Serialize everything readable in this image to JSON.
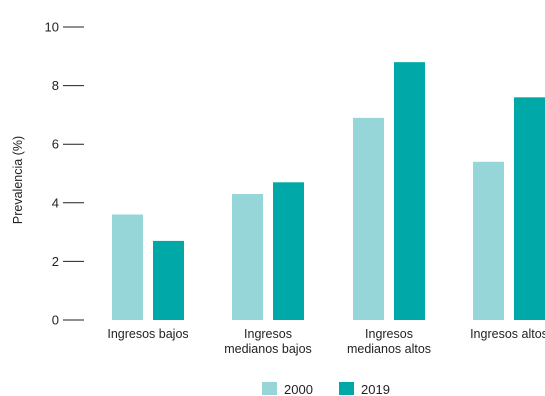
{
  "chart_data": {
    "type": "bar",
    "categories": [
      [
        "Ingresos bajos"
      ],
      [
        "Ingresos",
        "medianos bajos"
      ],
      [
        "Ingresos",
        "medianos altos"
      ],
      [
        "Ingresos altos"
      ]
    ],
    "series": [
      {
        "name": "2000",
        "color": "#96d6d8",
        "values": [
          3.6,
          4.3,
          6.9,
          5.4
        ]
      },
      {
        "name": "2019",
        "color": "#00a9a7",
        "values": [
          2.7,
          4.7,
          8.8,
          7.6
        ]
      }
    ],
    "title": "",
    "xlabel": "",
    "ylabel": "Prevalencia (%)",
    "ylim": [
      0,
      10
    ],
    "yticks": [
      0,
      2,
      4,
      6,
      8,
      10
    ],
    "grid": false,
    "legend": "bottom"
  }
}
